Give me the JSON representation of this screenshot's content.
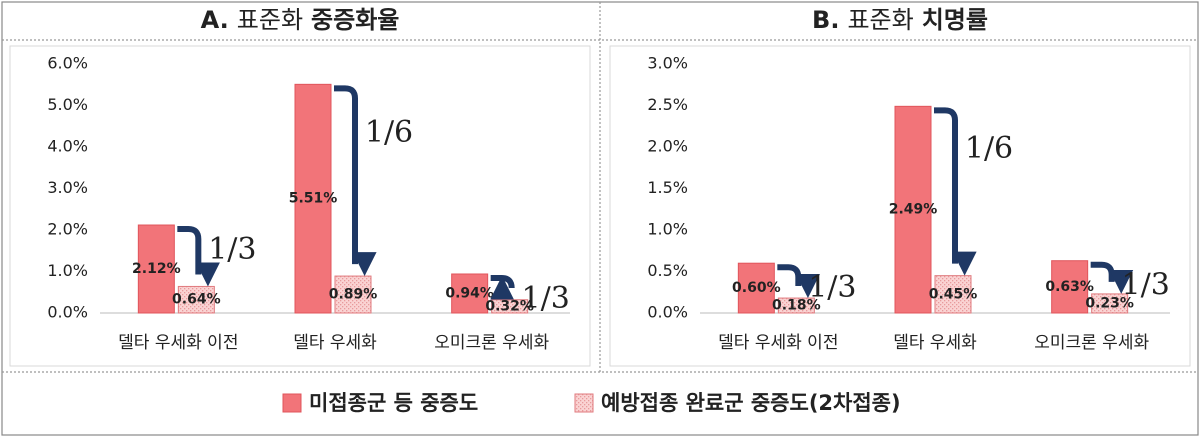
{
  "chart_data": [
    {
      "type": "bar",
      "title": [
        "A.",
        "표준화",
        "중증화율"
      ],
      "categories": [
        "델타 우세화 이전",
        "델타 우세화",
        "오미크론 우세화"
      ],
      "series": [
        {
          "name": "미접종군 등 중증도",
          "color": "#f27479",
          "values": [
            2.12,
            5.51,
            0.94
          ],
          "value_labels": [
            "2.12%",
            "5.51%",
            "0.94%"
          ]
        },
        {
          "name": "예방접종 완료군 중증도(2차접종)",
          "color": "#fad3d3",
          "values": [
            0.64,
            0.89,
            0.32
          ],
          "value_labels": [
            "0.64%",
            "0.89%",
            "0.32%"
          ]
        }
      ],
      "annotations": [
        "1/3",
        "1/6",
        "1/3"
      ],
      "ylim": [
        0,
        6
      ],
      "yticks": [
        {
          "value": 0,
          "label": "0.0%"
        },
        {
          "value": 1,
          "label": "1.0%"
        },
        {
          "value": 2,
          "label": "2.0%"
        },
        {
          "value": 3,
          "label": "3.0%"
        },
        {
          "value": 4,
          "label": "4.0%"
        },
        {
          "value": 5,
          "label": "5.0%"
        },
        {
          "value": 6,
          "label": "6.0%"
        }
      ],
      "grid": false
    },
    {
      "type": "bar",
      "title": [
        "B.",
        "표준화",
        "치명률"
      ],
      "categories": [
        "델타 우세화 이전",
        "델타 우세화",
        "오미크론 우세화"
      ],
      "series": [
        {
          "color": "#f27479",
          "values": [
            0.6,
            2.49,
            0.63
          ],
          "value_labels": [
            "0.60%",
            "2.49%",
            "0.63%"
          ]
        },
        {
          "color": "#fad3d3",
          "values": [
            0.18,
            0.45,
            0.23
          ],
          "value_labels": [
            "0.18%",
            "0.45%",
            "0.23%"
          ]
        }
      ],
      "annotations": [
        "1/3",
        "1/6",
        "1/3"
      ],
      "ylim": [
        0,
        3
      ],
      "yticks": [
        {
          "value": 0,
          "label": "0.0%"
        },
        {
          "value": 0.5,
          "label": "0.5%"
        },
        {
          "value": 1,
          "label": "1.0%"
        },
        {
          "value": 1.5,
          "label": "1.5%"
        },
        {
          "value": 2,
          "label": "2.0%"
        },
        {
          "value": 2.5,
          "label": "2.5%"
        },
        {
          "value": 3,
          "label": "3.0%"
        }
      ],
      "grid": false
    }
  ]
}
